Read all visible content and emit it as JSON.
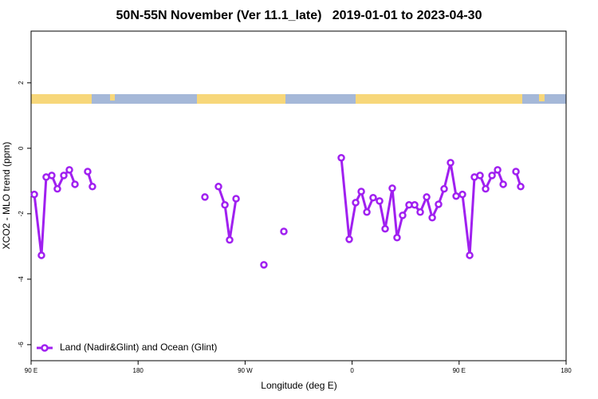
{
  "chart_data": {
    "type": "line",
    "title": "50N-55N November (Ver 11.1_late)   2019-01-01 to 2023-04-30",
    "x_label": "Longitude (deg E)",
    "y_label": "XCO2 - MLO trend (ppm)",
    "xlim": [
      90,
      540
    ],
    "ylim": [
      -6.49,
      3.58
    ],
    "xticks": [
      {
        "value": 90,
        "label": "90 E"
      },
      180,
      {
        "value": 270,
        "label": "90 W"
      },
      {
        "value": 360,
        "label": "0"
      },
      {
        "value": 450,
        "label": "90 E"
      },
      {
        "value": 540,
        "label": "180"
      }
    ],
    "yticks": [
      2,
      0,
      -2,
      -4,
      -6
    ],
    "legend": "bottom-left",
    "x": [
      92.7,
      98.7,
      102.7,
      107.4,
      112.1,
      117.5,
      122.2,
      126.9,
      null,
      137.6,
      141.6,
      null,
      236.2,
      null,
      247.6,
      253.0,
      257.0,
      262.4,
      null,
      285.8,
      null,
      302.6,
      null,
      350.9,
      357.6,
      363.0,
      367.7,
      372.4,
      377.7,
      383.1,
      387.8,
      393.8,
      397.8,
      402.5,
      407.9,
      412.6,
      417.3,
      422.7,
      427.4,
      432.7,
      437.4,
      442.8,
      447.5,
      452.8,
      458.9,
      462.9,
      467.6,
      472.3,
      477.7,
      482.4,
      487.1,
      null,
      497.8,
      501.8
    ],
    "series": [
      {
        "name": "Land (Nadir&Glint) and Ocean (Glint)",
        "color": "#a020f0",
        "values": [
          -1.41,
          -3.27,
          -0.88,
          -0.83,
          -1.24,
          -0.83,
          -0.66,
          -1.1,
          null,
          -0.71,
          -1.17,
          null,
          -1.49,
          null,
          -1.17,
          -1.73,
          -2.8,
          -1.54,
          null,
          -3.56,
          null,
          -2.54,
          null,
          -0.29,
          -2.78,
          -1.66,
          -1.32,
          -1.95,
          -1.51,
          -1.61,
          -2.46,
          -1.22,
          -2.73,
          -2.05,
          -1.73,
          -1.73,
          -1.95,
          -1.49,
          -2.12,
          -1.71,
          -1.24,
          -0.44,
          -1.46,
          -1.41,
          -3.27,
          -0.88,
          -0.83,
          -1.24,
          -0.83,
          -0.66,
          -1.1,
          null,
          -0.71,
          -1.17
        ]
      }
    ]
  }
}
